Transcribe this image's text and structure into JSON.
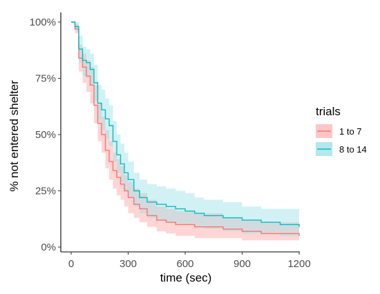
{
  "chart_data": {
    "type": "line",
    "subtype": "step-with-confidence-band",
    "title": "",
    "xlabel": "time (sec)",
    "ylabel": "% not entered shelter",
    "xlim": [
      0,
      1200
    ],
    "ylim": [
      0,
      1
    ],
    "x_ticks": [
      0,
      300,
      600,
      900,
      1200
    ],
    "x_tick_labels": [
      "0",
      "300",
      "600",
      "900",
      "1200"
    ],
    "y_ticks": [
      0,
      0.25,
      0.5,
      0.75,
      1.0
    ],
    "y_tick_labels": [
      "0%",
      "25%",
      "50%",
      "75%",
      "100%"
    ],
    "grid": false,
    "legend": {
      "title": "trials",
      "position": "right"
    },
    "series": [
      {
        "name": "1 to 7",
        "color": "#F8766D",
        "band_color": "#FFB3B3",
        "x": [
          0,
          20,
          40,
          60,
          80,
          100,
          120,
          140,
          160,
          180,
          200,
          220,
          240,
          260,
          280,
          300,
          330,
          360,
          400,
          450,
          500,
          550,
          600,
          650,
          700,
          800,
          900,
          1000,
          1100,
          1200
        ],
        "y": [
          1.0,
          0.97,
          0.84,
          0.8,
          0.76,
          0.72,
          0.63,
          0.55,
          0.5,
          0.43,
          0.38,
          0.34,
          0.31,
          0.28,
          0.25,
          0.22,
          0.19,
          0.17,
          0.14,
          0.12,
          0.11,
          0.1,
          0.1,
          0.09,
          0.09,
          0.08,
          0.07,
          0.06,
          0.06,
          0.05
        ],
        "lower": [
          1.0,
          0.95,
          0.78,
          0.73,
          0.69,
          0.64,
          0.55,
          0.47,
          0.42,
          0.35,
          0.3,
          0.26,
          0.23,
          0.21,
          0.18,
          0.15,
          0.13,
          0.11,
          0.09,
          0.07,
          0.06,
          0.05,
          0.05,
          0.04,
          0.04,
          0.04,
          0.03,
          0.03,
          0.03,
          0.02
        ],
        "upper": [
          1.0,
          0.99,
          0.9,
          0.86,
          0.83,
          0.8,
          0.72,
          0.64,
          0.58,
          0.52,
          0.47,
          0.42,
          0.39,
          0.36,
          0.32,
          0.29,
          0.26,
          0.24,
          0.21,
          0.18,
          0.17,
          0.16,
          0.16,
          0.15,
          0.15,
          0.13,
          0.12,
          0.11,
          0.11,
          0.1
        ]
      },
      {
        "name": "8 to 14",
        "color": "#00BFC4",
        "band_color": "#9CDFE6",
        "x": [
          0,
          20,
          40,
          60,
          80,
          100,
          120,
          140,
          160,
          180,
          200,
          220,
          240,
          260,
          280,
          300,
          330,
          360,
          400,
          450,
          500,
          550,
          600,
          650,
          700,
          800,
          900,
          1000,
          1100,
          1200
        ],
        "y": [
          1.0,
          0.98,
          0.88,
          0.83,
          0.82,
          0.79,
          0.73,
          0.64,
          0.61,
          0.57,
          0.54,
          0.47,
          0.41,
          0.37,
          0.33,
          0.3,
          0.25,
          0.22,
          0.2,
          0.19,
          0.18,
          0.17,
          0.16,
          0.15,
          0.14,
          0.13,
          0.12,
          0.11,
          0.1,
          0.09
        ],
        "lower": [
          1.0,
          0.96,
          0.82,
          0.76,
          0.75,
          0.72,
          0.65,
          0.56,
          0.52,
          0.48,
          0.45,
          0.38,
          0.33,
          0.29,
          0.25,
          0.22,
          0.18,
          0.15,
          0.13,
          0.12,
          0.11,
          0.1,
          0.1,
          0.09,
          0.08,
          0.07,
          0.06,
          0.06,
          0.05,
          0.05
        ],
        "upper": [
          1.0,
          1.0,
          0.94,
          0.89,
          0.88,
          0.86,
          0.81,
          0.72,
          0.7,
          0.66,
          0.63,
          0.56,
          0.5,
          0.46,
          0.42,
          0.38,
          0.33,
          0.3,
          0.28,
          0.27,
          0.26,
          0.25,
          0.24,
          0.22,
          0.21,
          0.2,
          0.18,
          0.17,
          0.17,
          0.17
        ]
      }
    ]
  }
}
